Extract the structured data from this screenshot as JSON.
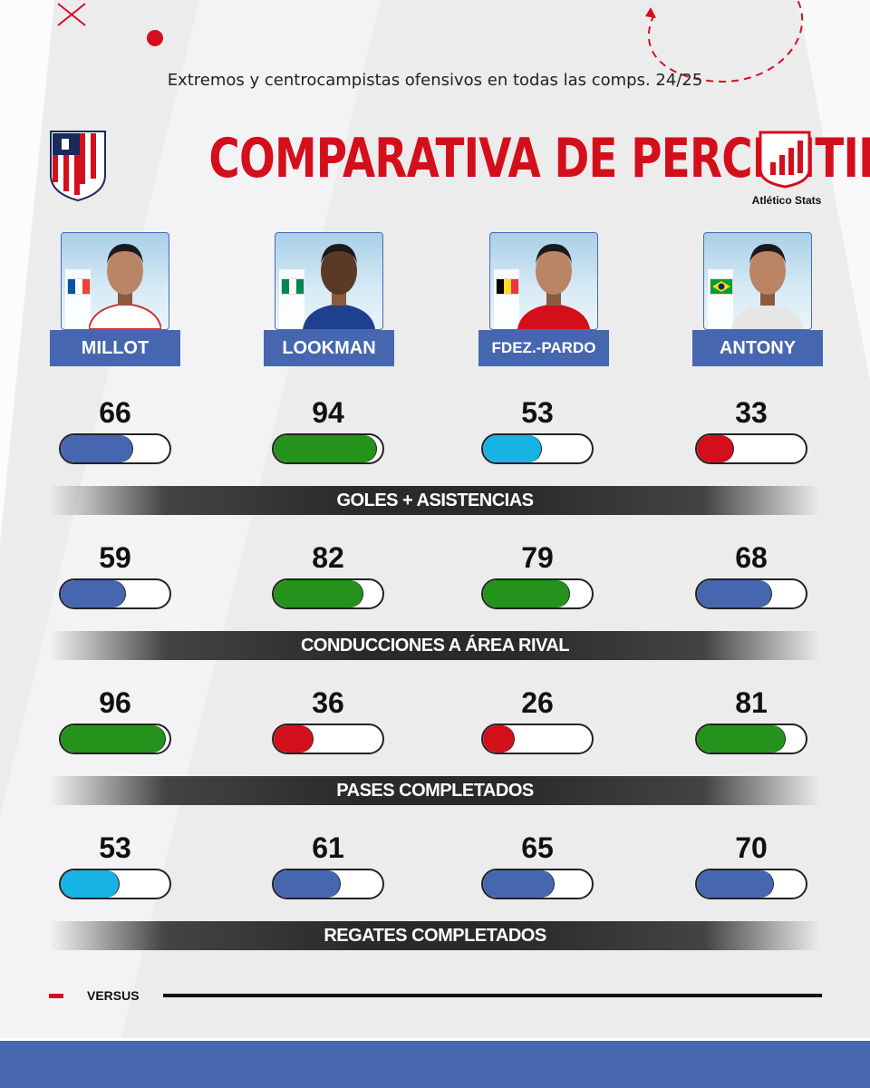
{
  "subtitle": "Extremos y centrocampistas ofensivos en todas las comps. 24/25",
  "title": "COMPARATIVA DE PERCENTILES",
  "brand": "Atlético Stats",
  "footer_label": "VERSUS",
  "colors": {
    "blue": "#4667b0",
    "green": "#25921b",
    "cyan": "#17b4e3",
    "red": "#d40f1c"
  },
  "players": [
    {
      "name": "MILLOT",
      "flag": "france-flag-icon"
    },
    {
      "name": "LOOKMAN",
      "flag": "nigeria-flag-icon"
    },
    {
      "name": "FDEZ.-PARDO",
      "flag": "belgium-flag-icon"
    },
    {
      "name": "ANTONY",
      "flag": "brazil-flag-icon"
    }
  ],
  "metrics": [
    {
      "label": "GOLES + ASISTENCIAS",
      "values": [
        66,
        94,
        53,
        33
      ],
      "colors": [
        "blue",
        "green",
        "cyan",
        "red"
      ]
    },
    {
      "label": "CONDUCCIONES A ÁREA RIVAL",
      "values": [
        59,
        82,
        79,
        68
      ],
      "colors": [
        "blue",
        "green",
        "green",
        "blue"
      ]
    },
    {
      "label": "PASES COMPLETADOS",
      "values": [
        96,
        36,
        26,
        81
      ],
      "colors": [
        "green",
        "red",
        "red",
        "green"
      ]
    },
    {
      "label": "REGATES COMPLETADOS",
      "values": [
        53,
        61,
        65,
        70
      ],
      "colors": [
        "cyan",
        "blue",
        "blue",
        "blue"
      ]
    }
  ]
}
